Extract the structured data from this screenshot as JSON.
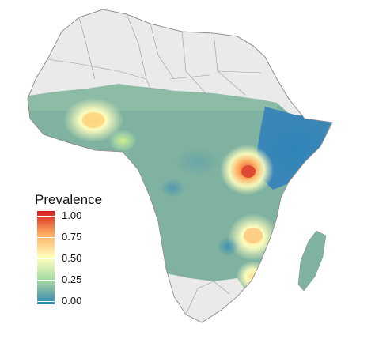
{
  "map": {
    "colors": {
      "land_background": "#eaeaea",
      "border": "#8c8c8c",
      "base_surface": "#7fb2a0",
      "low": "#2b83ba",
      "high": "#d7191c"
    }
  },
  "legend": {
    "title": "Prevalence",
    "labels": [
      "1.00",
      "0.75",
      "0.50",
      "0.25",
      "0.00"
    ],
    "scale": [
      1.0,
      0.75,
      0.5,
      0.25,
      0.0
    ],
    "colors": [
      "#d7191c",
      "#fdae61",
      "#ffffbf",
      "#abdda4",
      "#2b83ba"
    ]
  }
}
